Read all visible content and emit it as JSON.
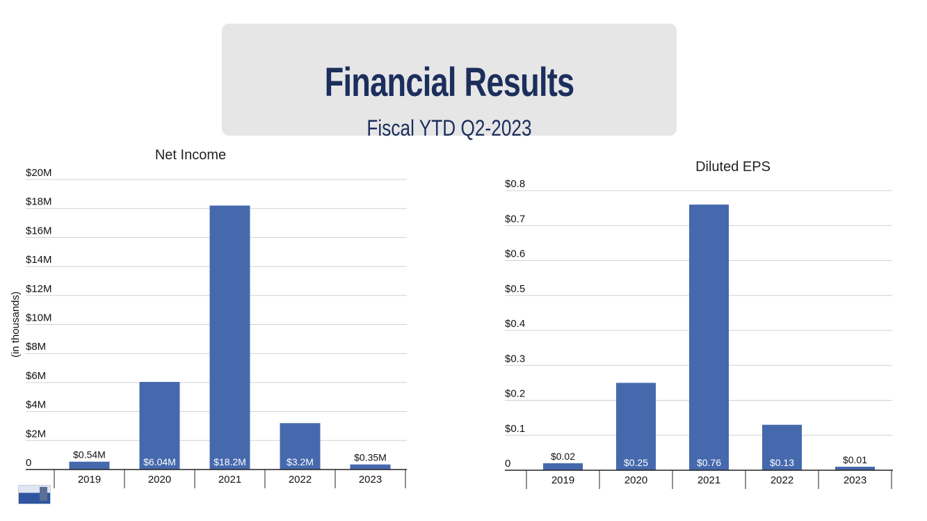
{
  "header": {
    "title": "Financial Results",
    "subtitle": "Fiscal YTD Q2-2023"
  },
  "colors": {
    "bar": "#4669ad",
    "title_box": "#e6e6e7",
    "title_text": "#1c2e5c",
    "gridline": "#d0d0d0",
    "axis": "#222222"
  },
  "logo": {
    "icon": "company-logo-icon"
  },
  "chart_data": [
    {
      "type": "bar",
      "title": "Net Income",
      "ylabel": "(in thousands)",
      "xlabel": "",
      "categories": [
        "2019",
        "2020",
        "2021",
        "2022",
        "2023"
      ],
      "values": [
        0.54,
        6.04,
        18.2,
        3.2,
        0.35
      ],
      "data_labels": [
        "$0.54M",
        "$6.04M",
        "$18.2M",
        "$3.2M",
        "$0.35M"
      ],
      "ylim": [
        0,
        20
      ],
      "yticks": [
        0,
        2,
        4,
        6,
        8,
        10,
        12,
        14,
        16,
        18,
        20
      ],
      "ytick_labels": [
        "0",
        "$2M",
        "$4M",
        "$6M",
        "$8M",
        "$10M",
        "$12M",
        "$14M",
        "$16M",
        "$18M",
        "$20M"
      ],
      "grid": true
    },
    {
      "type": "bar",
      "title": "Diluted EPS",
      "ylabel": "",
      "xlabel": "",
      "categories": [
        "2019",
        "2020",
        "2021",
        "2022",
        "2023"
      ],
      "values": [
        0.02,
        0.25,
        0.76,
        0.13,
        0.01
      ],
      "data_labels": [
        "$0.02",
        "$0.25",
        "$0.76",
        "$0.13",
        "$0.01"
      ],
      "ylim": [
        0,
        0.8
      ],
      "yticks": [
        0,
        0.1,
        0.2,
        0.3,
        0.4,
        0.5,
        0.6,
        0.7,
        0.8
      ],
      "ytick_labels": [
        "0",
        "$0.1",
        "$0.2",
        "$0.3",
        "$0.4",
        "$0.5",
        "$0.6",
        "$0.7",
        "$0.8"
      ],
      "grid": true
    }
  ]
}
